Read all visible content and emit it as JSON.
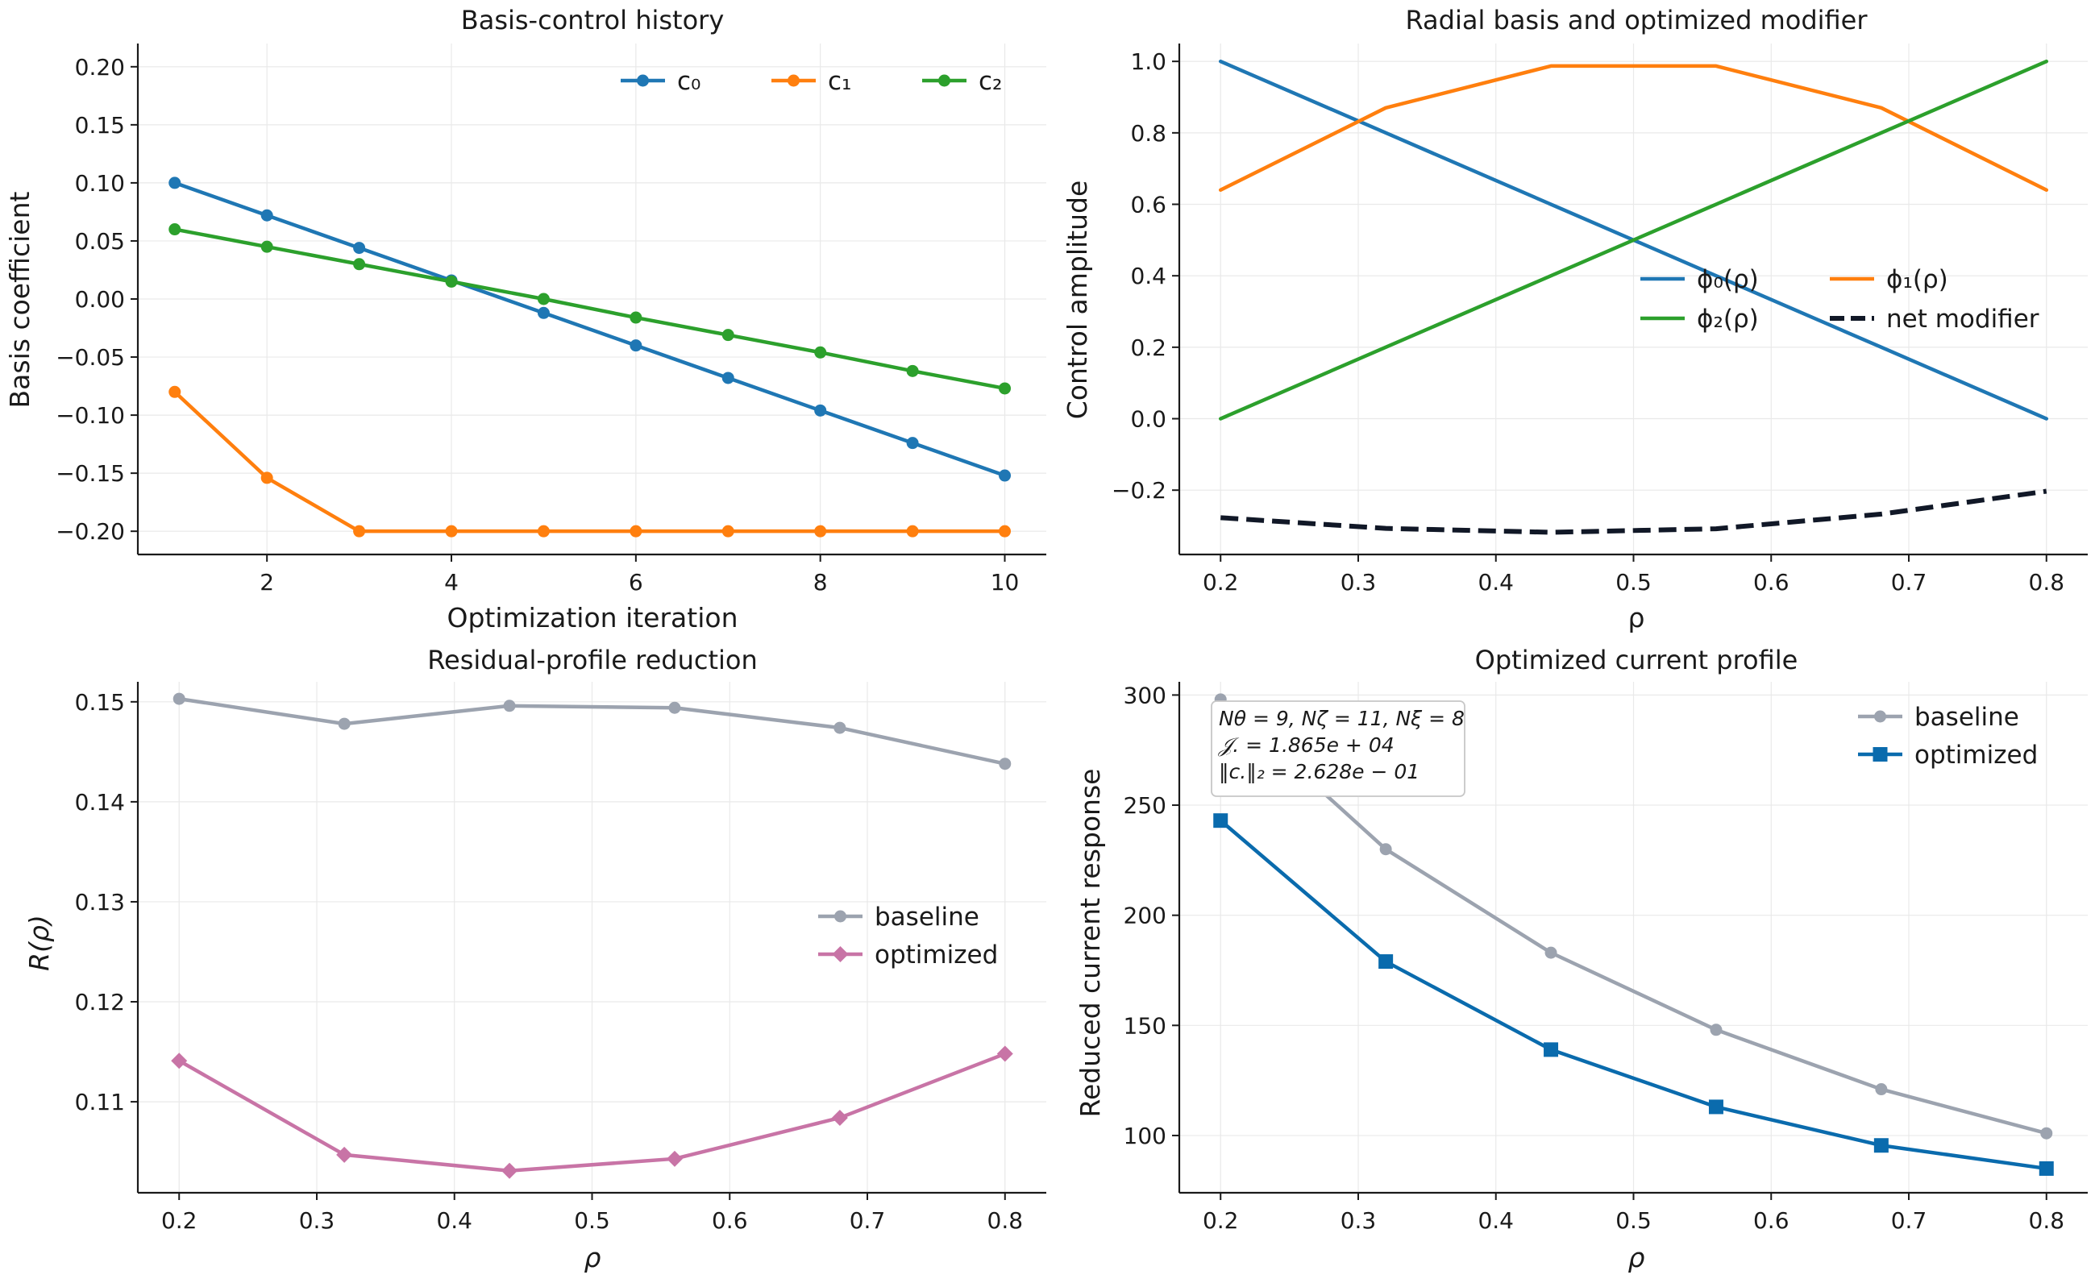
{
  "figure": {
    "background": "#ffffff"
  },
  "chart_data": [
    {
      "type": "line",
      "title": "Basis-control history",
      "xlabel": "Optimization iteration",
      "ylabel": "Basis coefficient",
      "xlim": [
        0.6,
        10.45
      ],
      "ylim": [
        -0.22,
        0.22
      ],
      "xticks": [
        2,
        4,
        6,
        8,
        10
      ],
      "xtick_labels": [
        "2",
        "4",
        "6",
        "8",
        "10"
      ],
      "yticks": [
        0.2,
        0.15,
        0.1,
        0.05,
        0.0,
        -0.05,
        -0.1,
        -0.15,
        -0.2
      ],
      "ytick_labels": [
        "0.20",
        "0.15",
        "0.10",
        "0.05",
        "0.00",
        "−0.05",
        "−0.10",
        "−0.15",
        "−0.20"
      ],
      "grid": true,
      "legend_position": "upper right",
      "legend_columns": 3,
      "x": [
        1,
        2,
        3,
        4,
        5,
        6,
        7,
        8,
        9,
        10
      ],
      "series": [
        {
          "name": "c₀",
          "color": "#1f77b4",
          "marker": "circle",
          "dash": "solid",
          "values": [
            0.1,
            0.072,
            0.044,
            0.016,
            -0.012,
            -0.04,
            -0.068,
            -0.096,
            -0.124,
            -0.152
          ]
        },
        {
          "name": "c₁",
          "color": "#ff7f0e",
          "marker": "circle",
          "dash": "solid",
          "values": [
            -0.08,
            -0.154,
            -0.2,
            -0.2,
            -0.2,
            -0.2,
            -0.2,
            -0.2,
            -0.2,
            -0.2
          ]
        },
        {
          "name": "c₂",
          "color": "#2ca02c",
          "marker": "circle",
          "dash": "solid",
          "values": [
            0.06,
            0.045,
            0.03,
            0.015,
            0.0,
            -0.016,
            -0.031,
            -0.046,
            -0.062,
            -0.077
          ]
        }
      ]
    },
    {
      "type": "line",
      "title": "Radial basis and optimized modifier",
      "xlabel": "ρ",
      "ylabel": "Control amplitude",
      "xlim": [
        0.17,
        0.83
      ],
      "ylim": [
        -0.38,
        1.05
      ],
      "xticks": [
        0.2,
        0.3,
        0.4,
        0.5,
        0.6,
        0.7,
        0.8
      ],
      "xtick_labels": [
        "0.2",
        "0.3",
        "0.4",
        "0.5",
        "0.6",
        "0.7",
        "0.8"
      ],
      "yticks": [
        1.0,
        0.8,
        0.6,
        0.4,
        0.2,
        0.0,
        -0.2
      ],
      "ytick_labels": [
        "1.0",
        "0.8",
        "0.6",
        "0.4",
        "0.2",
        "0.0",
        "−0.2"
      ],
      "grid": true,
      "legend_position": "center right",
      "legend_columns": 2,
      "x": [
        0.2,
        0.32,
        0.44,
        0.56,
        0.68,
        0.8
      ],
      "series": [
        {
          "name": "ϕ₀(ρ)",
          "color": "#1f77b4",
          "marker": "none",
          "dash": "solid",
          "values": [
            1.0,
            0.8,
            0.6,
            0.4,
            0.2,
            0.0
          ]
        },
        {
          "name": "ϕ₁(ρ)",
          "color": "#ff7f0e",
          "marker": "none",
          "dash": "solid",
          "values": [
            0.64,
            0.87,
            0.987,
            0.987,
            0.87,
            0.64
          ]
        },
        {
          "name": "ϕ₂(ρ)",
          "color": "#2ca02c",
          "marker": "none",
          "dash": "solid",
          "values": [
            0.0,
            0.2,
            0.4,
            0.6,
            0.8,
            1.0
          ]
        },
        {
          "name": "net modifier",
          "color": "#111827",
          "marker": "none",
          "dash": "dashed",
          "values": [
            -0.277,
            -0.307,
            -0.318,
            -0.308,
            -0.267,
            -0.203
          ]
        }
      ]
    },
    {
      "type": "line",
      "title": "Residual-profile reduction",
      "xlabel": "ρ",
      "ylabel": "R(ρ)",
      "xlim": [
        0.17,
        0.83
      ],
      "ylim": [
        0.1009,
        0.152
      ],
      "xticks": [
        0.2,
        0.3,
        0.4,
        0.5,
        0.6,
        0.7,
        0.8
      ],
      "xtick_labels": [
        "0.2",
        "0.3",
        "0.4",
        "0.5",
        "0.6",
        "0.7",
        "0.8"
      ],
      "yticks": [
        0.15,
        0.14,
        0.13,
        0.12,
        0.11
      ],
      "ytick_labels": [
        "0.15",
        "0.14",
        "0.13",
        "0.12",
        "0.11"
      ],
      "grid": true,
      "legend_position": "center right",
      "legend_columns": 1,
      "x": [
        0.2,
        0.32,
        0.44,
        0.56,
        0.68,
        0.8
      ],
      "series": [
        {
          "name": "baseline",
          "color": "#9ca3af",
          "marker": "circle",
          "dash": "solid",
          "values": [
            0.1503,
            0.1478,
            0.1496,
            0.1494,
            0.1474,
            0.1438
          ]
        },
        {
          "name": "optimized",
          "color": "#c874a6",
          "marker": "diamond",
          "dash": "solid",
          "values": [
            0.1141,
            0.1047,
            0.1031,
            0.1043,
            0.1084,
            0.1148
          ]
        }
      ]
    },
    {
      "type": "line",
      "title": "Optimized current profile",
      "xlabel": "ρ",
      "ylabel": "Reduced current response",
      "xlim": [
        0.17,
        0.83
      ],
      "ylim": [
        74,
        306
      ],
      "xticks": [
        0.2,
        0.3,
        0.4,
        0.5,
        0.6,
        0.7,
        0.8
      ],
      "xtick_labels": [
        "0.2",
        "0.3",
        "0.4",
        "0.5",
        "0.6",
        "0.7",
        "0.8"
      ],
      "yticks": [
        300,
        250,
        200,
        150,
        100
      ],
      "ytick_labels": [
        "300",
        "250",
        "200",
        "150",
        "100"
      ],
      "grid": true,
      "legend_position": "upper right",
      "legend_columns": 1,
      "annotation": {
        "lines": [
          "Nθ = 9, Nζ = 11, Nξ = 8",
          "𝒥. = 1.865e + 04",
          "‖c.‖₂ = 2.628e − 01"
        ]
      },
      "x": [
        0.2,
        0.32,
        0.44,
        0.56,
        0.68,
        0.8
      ],
      "series": [
        {
          "name": "baseline",
          "color": "#9ca3af",
          "marker": "circle",
          "dash": "solid",
          "values": [
            298,
            230,
            183,
            148,
            121,
            101
          ]
        },
        {
          "name": "optimized",
          "color": "#0a6bad",
          "marker": "square",
          "dash": "solid",
          "values": [
            243,
            179,
            139,
            113,
            95.5,
            85
          ]
        }
      ]
    }
  ]
}
